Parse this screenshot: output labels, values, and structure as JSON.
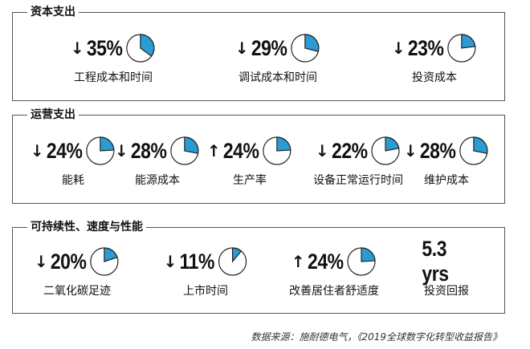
{
  "accent_color": "#2b9bd3",
  "sections": [
    {
      "title": "资本支出",
      "items": [
        {
          "direction": "down",
          "arrow": "↓",
          "value": "35%",
          "percent": 35,
          "label": "工程成本和时间"
        },
        {
          "direction": "down",
          "arrow": "↓",
          "value": "29%",
          "percent": 29,
          "label": "调试成本和时间"
        },
        {
          "direction": "down",
          "arrow": "↓",
          "value": "23%",
          "percent": 23,
          "label": "投资成本"
        }
      ]
    },
    {
      "title": "运营支出",
      "items": [
        {
          "direction": "down",
          "arrow": "↓",
          "value": "24%",
          "percent": 24,
          "label": "能耗"
        },
        {
          "direction": "down",
          "arrow": "↓",
          "value": "28%",
          "percent": 28,
          "label": "能源成本"
        },
        {
          "direction": "up",
          "arrow": "↑",
          "value": "24%",
          "percent": 24,
          "label": "生产率"
        },
        {
          "direction": "down",
          "arrow": "↓",
          "value": "22%",
          "percent": 22,
          "label": "设备正常运行时间"
        },
        {
          "direction": "down",
          "arrow": "↓",
          "value": "28%",
          "percent": 28,
          "label": "维护成本"
        }
      ]
    },
    {
      "title": "可持续性、速度与性能",
      "items": [
        {
          "direction": "down",
          "arrow": "↓",
          "value": "20%",
          "percent": 20,
          "label": "二氧化碳足迹"
        },
        {
          "direction": "down",
          "arrow": "↓",
          "value": "11%",
          "percent": 11,
          "label": "上市时间"
        },
        {
          "direction": "up",
          "arrow": "↑",
          "value": "24%",
          "percent": 24,
          "label": "改善居住者舒适度"
        },
        {
          "direction": "none",
          "arrow": "",
          "value": "5.3 yrs",
          "label": "投资回报"
        }
      ]
    }
  ],
  "source": "数据来源：施耐德电气，《2019全球数字化转型收益报告》"
}
